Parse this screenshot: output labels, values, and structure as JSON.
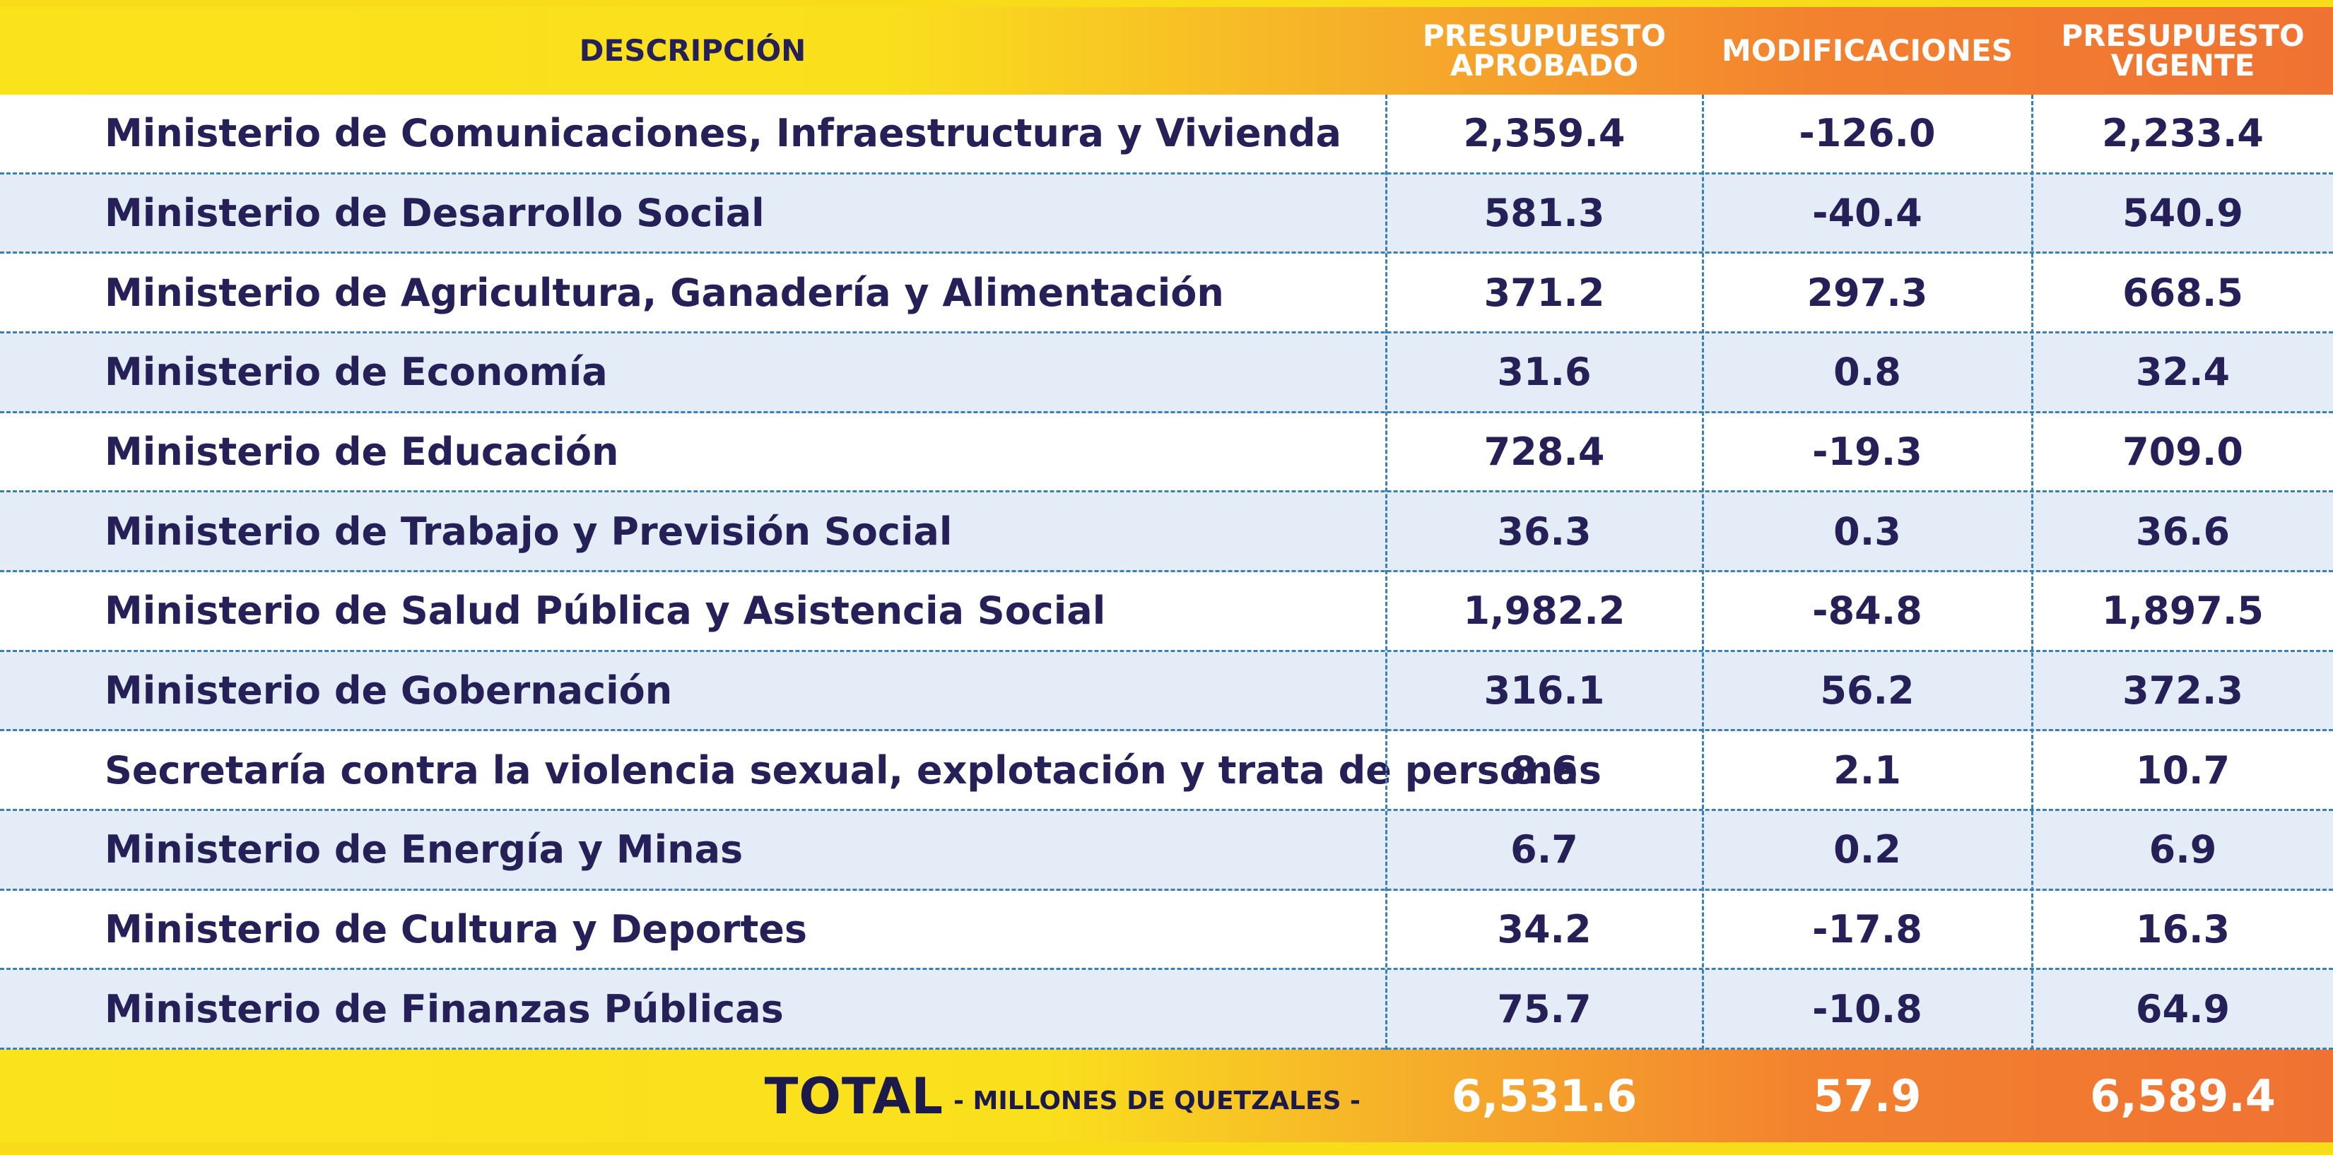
{
  "header": {
    "descripcion": "DESCRIPCIÓN",
    "presupuesto_aprobado": "PRESUPUESTO\nAPROBADO",
    "modificaciones": "MODIFICACIONES",
    "presupuesto_vigente": "PRESUPUESTO\nVIGENTE"
  },
  "rows": [
    {
      "descripcion": "Ministerio de Comunicaciones, Infraestructura y Vivienda",
      "aprobado": "2,359.4",
      "modificaciones": "-126.0",
      "vigente": "2,233.4"
    },
    {
      "descripcion": "Ministerio de Desarrollo Social",
      "aprobado": "581.3",
      "modificaciones": "-40.4",
      "vigente": "540.9"
    },
    {
      "descripcion": "Ministerio de Agricultura, Ganadería y Alimentación",
      "aprobado": "371.2",
      "modificaciones": "297.3",
      "vigente": "668.5"
    },
    {
      "descripcion": "Ministerio de Economía",
      "aprobado": "31.6",
      "modificaciones": "0.8",
      "vigente": "32.4"
    },
    {
      "descripcion": "Ministerio de Educación",
      "aprobado": "728.4",
      "modificaciones": "-19.3",
      "vigente": "709.0"
    },
    {
      "descripcion": "Ministerio de Trabajo y Previsión Social",
      "aprobado": "36.3",
      "modificaciones": "0.3",
      "vigente": "36.6"
    },
    {
      "descripcion": "Ministerio de Salud Pública y Asistencia Social",
      "aprobado": "1,982.2",
      "modificaciones": "-84.8",
      "vigente": "1,897.5"
    },
    {
      "descripcion": "Ministerio de Gobernación",
      "aprobado": "316.1",
      "modificaciones": "56.2",
      "vigente": "372.3"
    },
    {
      "descripcion": "Secretaría contra la violencia sexual, explotación y trata de personas",
      "aprobado": "8.6",
      "modificaciones": "2.1",
      "vigente": "10.7"
    },
    {
      "descripcion": "Ministerio de Energía y Minas",
      "aprobado": "6.7",
      "modificaciones": "0.2",
      "vigente": "6.9"
    },
    {
      "descripcion": "Ministerio de Cultura y Deportes",
      "aprobado": "34.2",
      "modificaciones": "-17.8",
      "vigente": "16.3"
    },
    {
      "descripcion": "Ministerio de Finanzas Públicas",
      "aprobado": "75.7",
      "modificaciones": "-10.8",
      "vigente": "64.9"
    }
  ],
  "total": {
    "label": "TOTAL",
    "unit": "- MILLONES DE QUETZALES -",
    "aprobado": "6,531.6",
    "modificaciones": "57.9",
    "vigente": "6,589.4"
  },
  "colors": {
    "yellow": "#fbe31c",
    "orange": "#f07232",
    "text_navy": "#252158",
    "row_alt": "#e4ecf7",
    "divider_blue": "#3b7fb7"
  }
}
